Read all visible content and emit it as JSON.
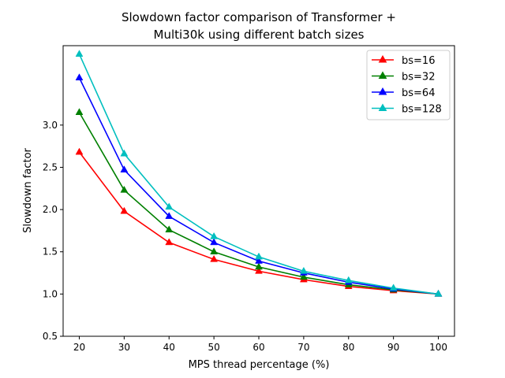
{
  "chart_data": {
    "type": "line",
    "title_lines": [
      "Slowdown factor comparison of Transformer +",
      "Multi30k using different batch sizes"
    ],
    "xlabel": "MPS thread percentage (%)",
    "ylabel": "Slowdown factor",
    "x": [
      20,
      30,
      40,
      50,
      60,
      70,
      80,
      90,
      100
    ],
    "xlim": [
      16.4,
      103.6
    ],
    "ylim": [
      0.5,
      3.94
    ],
    "xticks": [
      20,
      30,
      40,
      50,
      60,
      70,
      80,
      90,
      100
    ],
    "xtick_labels": [
      "20",
      "30",
      "40",
      "50",
      "60",
      "70",
      "80",
      "90",
      "100"
    ],
    "yticks": [
      0.5,
      1.0,
      1.5,
      2.0,
      2.5,
      3.0
    ],
    "ytick_labels": [
      "0.5",
      "1.0",
      "1.5",
      "2.0",
      "2.5",
      "3.0"
    ],
    "marker": "triangle",
    "legend_position": "top-right",
    "grid": false,
    "series": [
      {
        "name": "bs=16",
        "color": "#ff0000",
        "values": [
          2.68,
          1.98,
          1.61,
          1.41,
          1.27,
          1.17,
          1.09,
          1.04,
          1.0
        ]
      },
      {
        "name": "bs=32",
        "color": "#008000",
        "values": [
          3.15,
          2.23,
          1.76,
          1.5,
          1.32,
          1.2,
          1.11,
          1.05,
          1.0
        ]
      },
      {
        "name": "bs=64",
        "color": "#0000ff",
        "values": [
          3.56,
          2.47,
          1.92,
          1.61,
          1.39,
          1.25,
          1.14,
          1.06,
          1.0
        ]
      },
      {
        "name": "bs=128",
        "color": "#00bfbf",
        "values": [
          3.84,
          2.66,
          2.03,
          1.68,
          1.44,
          1.27,
          1.16,
          1.07,
          1.0
        ]
      }
    ]
  }
}
